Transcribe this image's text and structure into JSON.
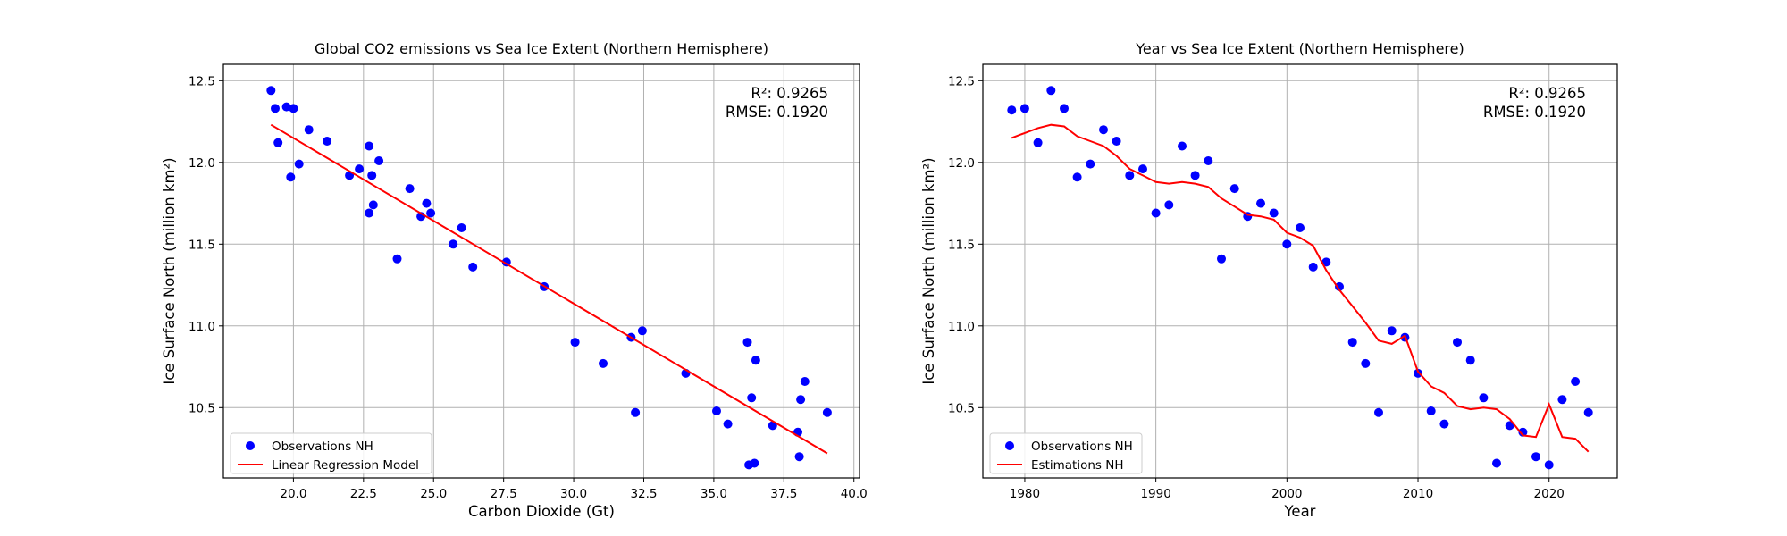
{
  "chart_data": [
    {
      "type": "scatter",
      "title": "Global CO2 emissions vs Sea Ice Extent (Northern Hemisphere)",
      "xlabel": "Carbon Dioxide (Gt)",
      "ylabel": "Ice Surface North (million km²)",
      "xlim": [
        17.5,
        40.2
      ],
      "ylim": [
        10.07,
        12.6
      ],
      "xticks": [
        "20.0",
        "22.5",
        "25.0",
        "27.5",
        "30.0",
        "32.5",
        "35.0",
        "37.5",
        "40.0"
      ],
      "yticks": [
        "10.5",
        "11.0",
        "11.5",
        "12.0",
        "12.5"
      ],
      "grid": true,
      "legend_position": "lower left",
      "annotation": [
        "R²: 0.9265",
        "RMSE: 0.1920"
      ],
      "series": [
        {
          "name": "Observations NH",
          "kind": "scatter",
          "color": "#0000ff",
          "x": [
            19.2,
            19.35,
            19.45,
            19.75,
            19.9,
            20.0,
            20.2,
            20.55,
            21.2,
            22.0,
            22.35,
            22.7,
            22.7,
            22.8,
            22.85,
            23.05,
            23.7,
            24.15,
            24.55,
            24.75,
            24.9,
            25.7,
            26.0,
            26.4,
            27.6,
            28.95,
            30.05,
            31.05,
            32.05,
            32.2,
            32.45,
            34.0,
            35.1,
            35.5,
            36.2,
            36.25,
            36.35,
            36.45,
            36.5,
            37.1,
            38.0,
            38.05,
            38.1,
            38.25,
            39.05
          ],
          "y": [
            12.44,
            12.33,
            12.12,
            12.34,
            11.91,
            12.33,
            11.99,
            12.2,
            12.13,
            11.92,
            11.96,
            12.1,
            11.69,
            11.92,
            11.74,
            12.01,
            11.41,
            11.84,
            11.67,
            11.75,
            11.69,
            11.5,
            11.6,
            11.36,
            11.39,
            11.24,
            10.9,
            10.77,
            10.93,
            10.47,
            10.97,
            10.71,
            10.48,
            10.4,
            10.9,
            10.15,
            10.56,
            10.16,
            10.79,
            10.39,
            10.35,
            10.2,
            10.55,
            10.66,
            10.47
          ]
        },
        {
          "name": "Linear Regression Model",
          "kind": "line",
          "color": "#ff0000",
          "x": [
            19.2,
            39.05
          ],
          "y": [
            12.23,
            10.22
          ]
        }
      ]
    },
    {
      "type": "scatter",
      "title": "Year vs Sea Ice Extent (Northern Hemisphere)",
      "xlabel": "Year",
      "ylabel": "Ice Surface North (million km²)",
      "xlim": [
        1976.8,
        2025.2
      ],
      "ylim": [
        10.07,
        12.6
      ],
      "xticks": [
        "1980",
        "1990",
        "2000",
        "2010",
        "2020"
      ],
      "yticks": [
        "10.5",
        "11.0",
        "11.5",
        "12.0",
        "12.5"
      ],
      "grid": true,
      "legend_position": "lower left",
      "annotation": [
        "R²: 0.9265",
        "RMSE: 0.1920"
      ],
      "series": [
        {
          "name": "Observations NH",
          "kind": "scatter",
          "color": "#0000ff",
          "x": [
            1979,
            1980,
            1981,
            1982,
            1983,
            1984,
            1985,
            1986,
            1987,
            1988,
            1989,
            1990,
            1991,
            1992,
            1993,
            1994,
            1995,
            1996,
            1997,
            1998,
            1999,
            2000,
            2001,
            2002,
            2003,
            2004,
            2005,
            2006,
            2007,
            2008,
            2009,
            2010,
            2011,
            2012,
            2013,
            2014,
            2015,
            2016,
            2017,
            2018,
            2019,
            2020,
            2021,
            2022,
            2023
          ],
          "y": [
            12.32,
            12.33,
            12.12,
            12.44,
            12.33,
            11.91,
            11.99,
            12.2,
            12.13,
            11.92,
            11.96,
            11.69,
            11.74,
            12.1,
            11.92,
            12.01,
            11.41,
            11.84,
            11.67,
            11.75,
            11.69,
            11.5,
            11.6,
            11.36,
            11.39,
            11.24,
            10.9,
            10.77,
            10.47,
            10.97,
            10.93,
            10.71,
            10.48,
            10.4,
            10.9,
            10.79,
            10.56,
            10.16,
            10.39,
            10.35,
            10.2,
            10.15,
            10.55,
            10.66,
            10.47
          ]
        },
        {
          "name": "Estimations NH",
          "kind": "line",
          "color": "#ff0000",
          "x": [
            1979,
            1980,
            1981,
            1982,
            1983,
            1984,
            1985,
            1986,
            1987,
            1988,
            1989,
            1990,
            1991,
            1992,
            1993,
            1994,
            1995,
            1996,
            1997,
            1998,
            1999,
            2000,
            2001,
            2002,
            2003,
            2004,
            2005,
            2006,
            2007,
            2008,
            2009,
            2010,
            2011,
            2012,
            2013,
            2014,
            2015,
            2016,
            2017,
            2018,
            2019,
            2020,
            2021,
            2022,
            2023
          ],
          "y": [
            12.15,
            12.18,
            12.21,
            12.23,
            12.22,
            12.16,
            12.13,
            12.1,
            12.04,
            11.96,
            11.92,
            11.88,
            11.87,
            11.88,
            11.87,
            11.85,
            11.78,
            11.73,
            11.68,
            11.67,
            11.65,
            11.57,
            11.54,
            11.49,
            11.34,
            11.22,
            11.12,
            11.02,
            10.91,
            10.89,
            10.94,
            10.72,
            10.63,
            10.59,
            10.51,
            10.49,
            10.5,
            10.49,
            10.43,
            10.33,
            10.32,
            10.52,
            10.32,
            10.31,
            10.23
          ]
        }
      ]
    }
  ]
}
